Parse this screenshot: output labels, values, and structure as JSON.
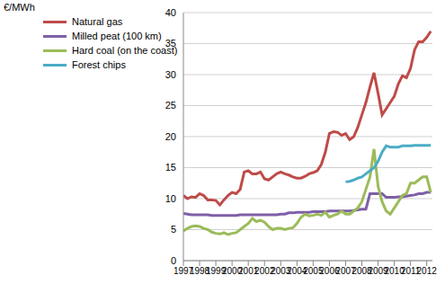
{
  "chart_data": {
    "type": "line",
    "y_label": "€/MWh",
    "x": [
      1997,
      1997.25,
      1997.5,
      1997.75,
      1998,
      1998.25,
      1998.5,
      1998.75,
      1999,
      1999.25,
      1999.5,
      1999.75,
      2000,
      2000.25,
      2000.5,
      2000.75,
      2001,
      2001.25,
      2001.5,
      2001.75,
      2002,
      2002.25,
      2002.5,
      2002.75,
      2003,
      2003.25,
      2003.5,
      2003.75,
      2004,
      2004.25,
      2004.5,
      2004.75,
      2005,
      2005.25,
      2005.5,
      2005.75,
      2006,
      2006.25,
      2006.5,
      2006.75,
      2007,
      2007.25,
      2007.5,
      2007.75,
      2008,
      2008.25,
      2008.5,
      2008.75,
      2009,
      2009.25,
      2009.5,
      2009.75,
      2010,
      2010.25,
      2010.5,
      2010.75,
      2011,
      2011.25,
      2011.5,
      2011.75,
      2012,
      2012.25
    ],
    "series": [
      {
        "name": "Natural gas",
        "color": "#be4b48",
        "values": [
          10.5,
          10,
          10.3,
          10.2,
          10.8,
          10.5,
          9.8,
          9.8,
          9.7,
          9.0,
          9.8,
          10.5,
          11,
          10.8,
          11.5,
          14.3,
          14.5,
          14.0,
          14,
          14.3,
          13.2,
          13.0,
          13.5,
          14,
          14.3,
          14,
          13.8,
          13.5,
          13.3,
          13.3,
          13.6,
          14,
          14.2,
          14.5,
          15.5,
          17.5,
          20.5,
          20.8,
          20.7,
          20.2,
          20.5,
          19.5,
          20,
          21.5,
          23.5,
          25.5,
          28,
          30.3,
          27,
          23.5,
          24.5,
          25.5,
          26.5,
          28.5,
          29.8,
          29.5,
          31,
          34,
          35.3,
          35.3,
          36,
          37
        ]
      },
      {
        "name": "Milled peat (100 km)",
        "color": "#7f5fa8",
        "values": [
          7.6,
          7.5,
          7.4,
          7.4,
          7.4,
          7.4,
          7.4,
          7.3,
          7.3,
          7.3,
          7.3,
          7.3,
          7.3,
          7.3,
          7.4,
          7.4,
          7.4,
          7.4,
          7.4,
          7.4,
          7.4,
          7.4,
          7.4,
          7.4,
          7.5,
          7.5,
          7.7,
          7.7,
          7.8,
          7.8,
          7.8,
          7.8,
          7.9,
          7.9,
          7.9,
          7.9,
          8.0,
          8.0,
          8.0,
          8.0,
          8.0,
          8.0,
          8.1,
          8.2,
          8.3,
          8.3,
          10.8,
          10.8,
          10.8,
          10.8,
          10.2,
          10.2,
          10.2,
          10.3,
          10.3,
          10.4,
          10.5,
          10.6,
          10.8,
          10.8,
          11.0,
          11.0
        ]
      },
      {
        "name": "Hard coal (on the coast)",
        "color": "#9bbb59",
        "values": [
          4.8,
          5.2,
          5.5,
          5.6,
          5.5,
          5.2,
          5.0,
          4.6,
          4.4,
          4.3,
          4.5,
          4.2,
          4.4,
          4.5,
          5.0,
          5.5,
          6.0,
          6.8,
          6.3,
          6.5,
          6.2,
          5.5,
          5.0,
          5.2,
          5.2,
          5.0,
          5.2,
          5.3,
          6.0,
          7.0,
          7.5,
          7.2,
          7.3,
          7.5,
          7.3,
          7.8,
          7.0,
          7.3,
          7.5,
          8.0,
          7.5,
          7.5,
          8.0,
          8.5,
          9.5,
          11.5,
          13.5,
          18,
          12,
          9.5,
          8,
          7.5,
          8.5,
          9.5,
          10.5,
          10.8,
          12.5,
          12.5,
          13.0,
          13.5,
          13.5,
          11
        ]
      },
      {
        "name": "Forest chips",
        "color": "#4bacc6",
        "values": [
          null,
          null,
          null,
          null,
          null,
          null,
          null,
          null,
          null,
          null,
          null,
          null,
          null,
          null,
          null,
          null,
          null,
          null,
          null,
          null,
          null,
          null,
          null,
          null,
          null,
          null,
          null,
          null,
          null,
          null,
          null,
          null,
          null,
          null,
          null,
          null,
          null,
          null,
          null,
          null,
          12.7,
          12.8,
          13,
          13.3,
          13.5,
          14,
          14.5,
          15,
          16,
          17.5,
          18.5,
          18.3,
          18.3,
          18.3,
          18.5,
          18.5,
          18.5,
          18.6,
          18.6,
          18.6,
          18.6,
          18.6
        ]
      }
    ],
    "xlim": [
      1997,
      2012.35
    ],
    "xticks": [
      1997,
      1998,
      1999,
      2000,
      2001,
      2002,
      2003,
      2004,
      2005,
      2006,
      2007,
      2008,
      2009,
      2010,
      2011,
      2012
    ],
    "ylim": [
      0,
      40
    ],
    "yticks": [
      0,
      5,
      10,
      15,
      20,
      25,
      30,
      35,
      40
    ],
    "grid": true,
    "legend": "top-left"
  }
}
